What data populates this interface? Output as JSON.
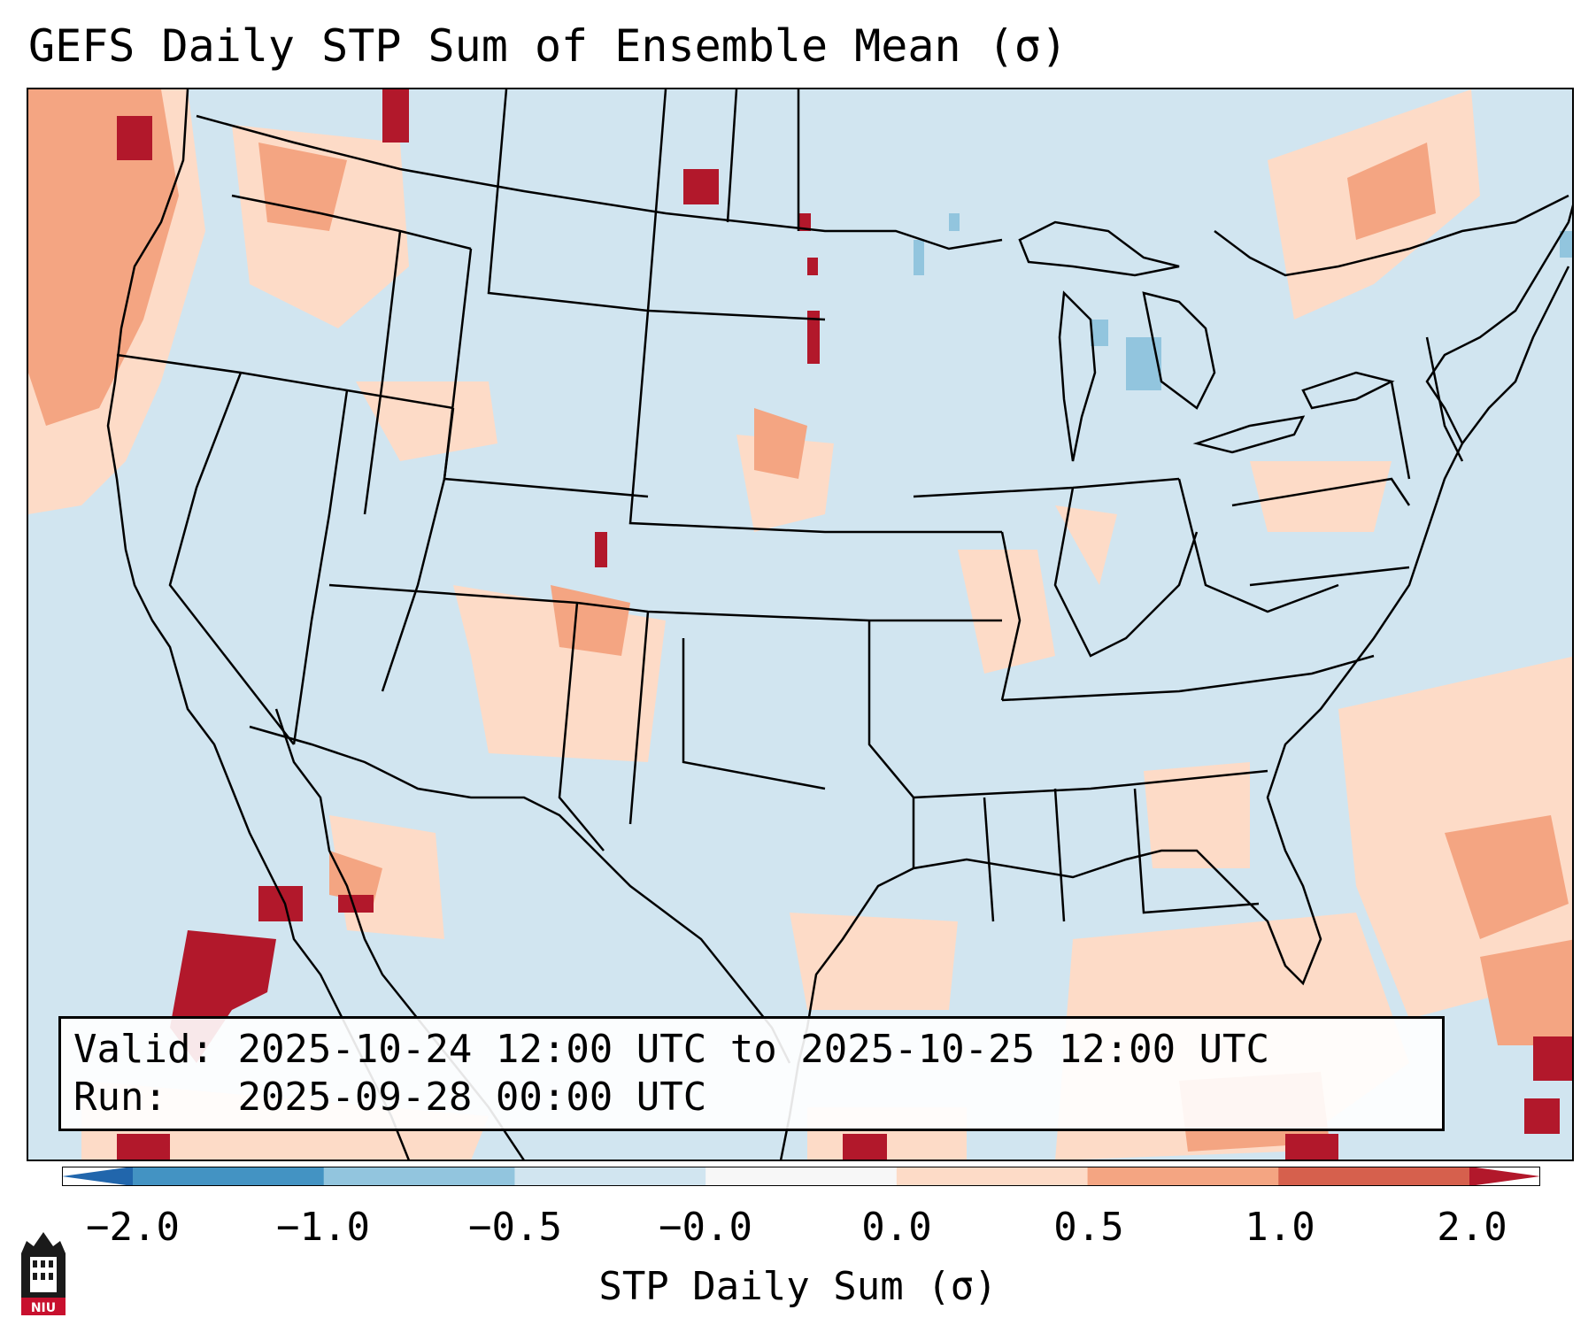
{
  "title": "GEFS Daily STP Sum of Ensemble Mean (σ)",
  "info": {
    "valid_label": "Valid:",
    "valid_value": "2025-10-24 12:00 UTC to 2025-10-25 12:00 UTC",
    "run_label": "Run:",
    "run_value": "2025-09-28 00:00 UTC"
  },
  "colorbar": {
    "label": "STP Daily Sum (σ)",
    "ticks": [
      "−2.0",
      "−1.0",
      "−0.5",
      "−0.0",
      "0.0",
      "0.5",
      "1.0",
      "2.0"
    ],
    "colors": [
      "#2166ac",
      "#4393c3",
      "#92c5de",
      "#d1e5f0",
      "#f7f7f7",
      "#fddbc7",
      "#f4a582",
      "#d6604d",
      "#b2182b"
    ]
  },
  "map": {
    "region": "CONUS",
    "background_color": "#d1e5f0",
    "outside_color": "#ffffff",
    "border_color": "#000000"
  },
  "logo": {
    "text": "NIU",
    "color": "#c8102e"
  }
}
